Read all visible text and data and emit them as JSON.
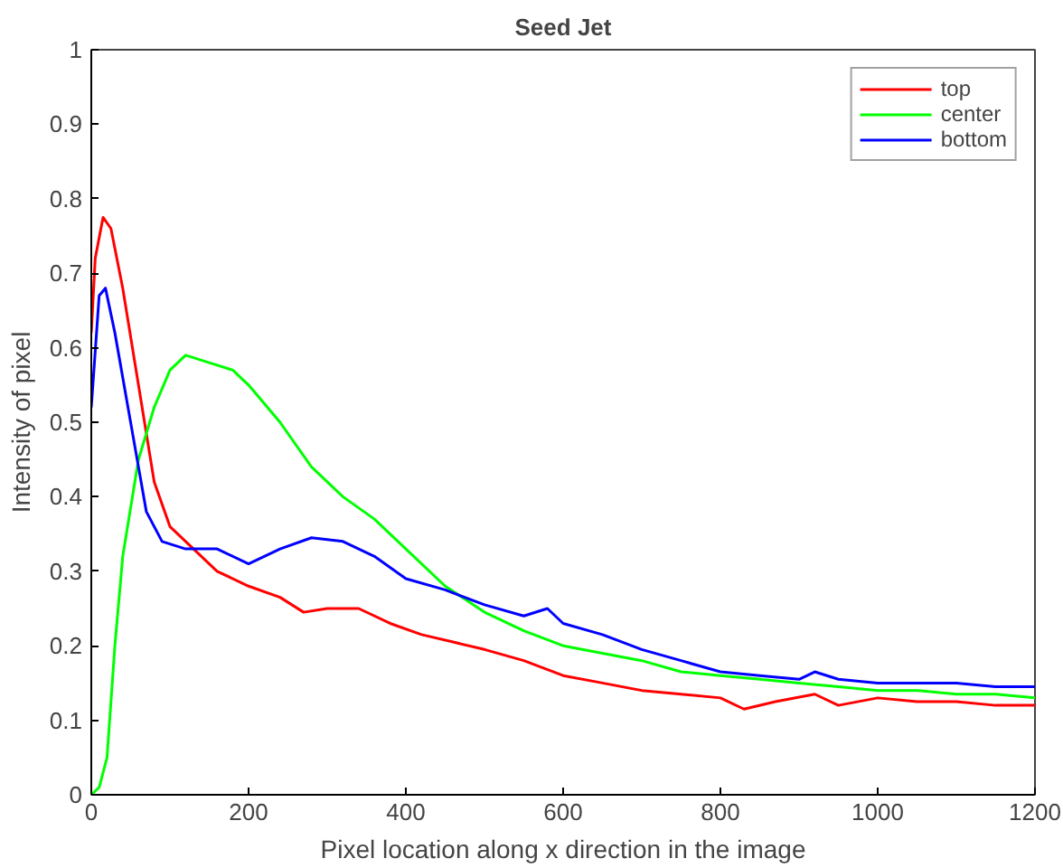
{
  "chart_data": {
    "type": "line",
    "title": "Seed Jet",
    "xlabel": "Pixel location along x direction in the image",
    "ylabel": "Intensity of pixel",
    "xlim": [
      0,
      1200
    ],
    "ylim": [
      0,
      1
    ],
    "xticks": [
      0,
      200,
      400,
      600,
      800,
      1000,
      1200
    ],
    "yticks": [
      0,
      0.1,
      0.2,
      0.3,
      0.4,
      0.5,
      0.6,
      0.7,
      0.8,
      0.9,
      1
    ],
    "grid": false,
    "legend": "top right",
    "marker": "none",
    "line_style": "solid",
    "series": [
      {
        "name": "top",
        "color": "#ff0000",
        "x": [
          0,
          5,
          15,
          25,
          40,
          60,
          80,
          100,
          130,
          160,
          200,
          240,
          270,
          300,
          340,
          380,
          420,
          460,
          500,
          550,
          600,
          650,
          700,
          750,
          800,
          830,
          870,
          920,
          950,
          1000,
          1050,
          1100,
          1150,
          1200
        ],
        "values": [
          0.62,
          0.72,
          0.775,
          0.76,
          0.68,
          0.55,
          0.42,
          0.36,
          0.33,
          0.3,
          0.28,
          0.265,
          0.245,
          0.25,
          0.25,
          0.23,
          0.215,
          0.205,
          0.195,
          0.18,
          0.16,
          0.15,
          0.14,
          0.135,
          0.13,
          0.115,
          0.125,
          0.135,
          0.12,
          0.13,
          0.125,
          0.125,
          0.12,
          0.12
        ]
      },
      {
        "name": "center",
        "color": "#00ff00",
        "x": [
          0,
          10,
          20,
          30,
          40,
          60,
          80,
          100,
          120,
          150,
          180,
          200,
          240,
          280,
          320,
          360,
          400,
          450,
          500,
          550,
          600,
          650,
          700,
          750,
          800,
          850,
          900,
          950,
          1000,
          1050,
          1100,
          1150,
          1200
        ],
        "values": [
          0.0,
          0.01,
          0.05,
          0.2,
          0.32,
          0.45,
          0.52,
          0.57,
          0.59,
          0.58,
          0.57,
          0.55,
          0.5,
          0.44,
          0.4,
          0.37,
          0.33,
          0.28,
          0.245,
          0.22,
          0.2,
          0.19,
          0.18,
          0.165,
          0.16,
          0.155,
          0.15,
          0.145,
          0.14,
          0.14,
          0.135,
          0.135,
          0.13
        ]
      },
      {
        "name": "bottom",
        "color": "#0000ff",
        "x": [
          0,
          10,
          18,
          30,
          50,
          70,
          90,
          120,
          160,
          200,
          240,
          280,
          320,
          360,
          400,
          450,
          500,
          550,
          580,
          600,
          650,
          700,
          750,
          800,
          850,
          900,
          920,
          950,
          1000,
          1050,
          1100,
          1150,
          1200
        ],
        "values": [
          0.52,
          0.67,
          0.68,
          0.62,
          0.5,
          0.38,
          0.34,
          0.33,
          0.33,
          0.31,
          0.33,
          0.345,
          0.34,
          0.32,
          0.29,
          0.275,
          0.255,
          0.24,
          0.25,
          0.23,
          0.215,
          0.195,
          0.18,
          0.165,
          0.16,
          0.155,
          0.165,
          0.155,
          0.15,
          0.15,
          0.15,
          0.145,
          0.145
        ]
      }
    ]
  }
}
